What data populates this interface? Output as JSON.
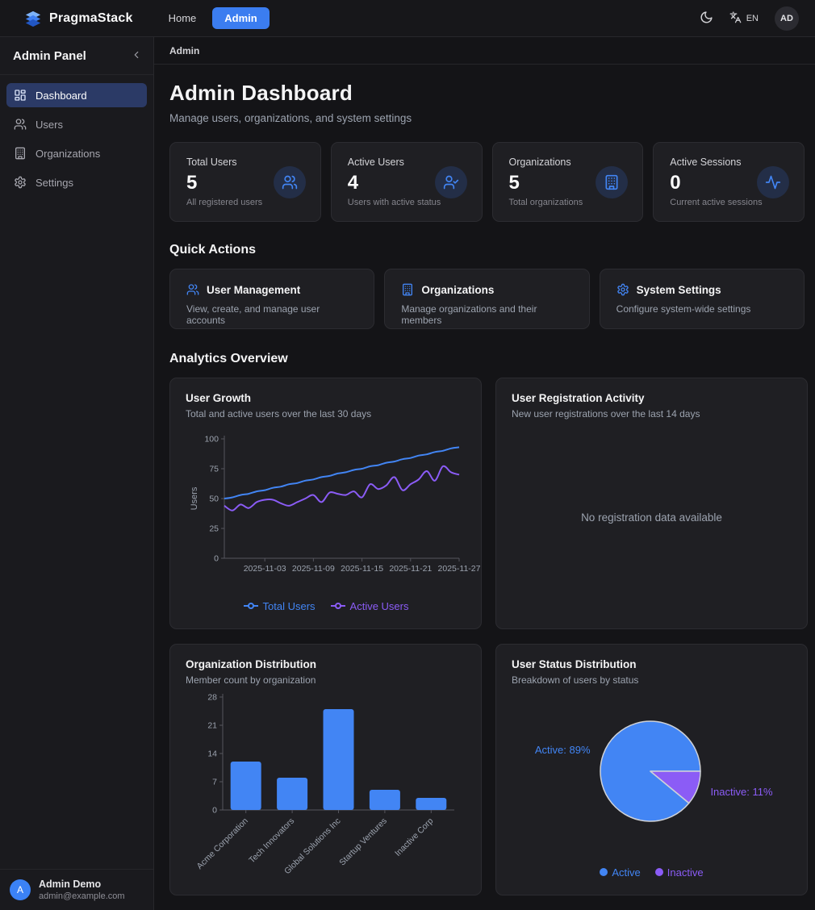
{
  "navbar": {
    "brand": "PragmaStack",
    "links": [
      {
        "label": "Home",
        "active": false
      },
      {
        "label": "Admin",
        "active": true
      }
    ],
    "language": "EN",
    "avatar_initials": "AD"
  },
  "sidebar": {
    "title": "Admin Panel",
    "items": [
      {
        "label": "Dashboard",
        "icon": "layout-dashboard",
        "active": true
      },
      {
        "label": "Users",
        "icon": "users",
        "active": false
      },
      {
        "label": "Organizations",
        "icon": "building",
        "active": false
      },
      {
        "label": "Settings",
        "icon": "settings",
        "active": false
      }
    ],
    "user": {
      "name": "Admin Demo",
      "email": "admin@example.com",
      "avatar_initial": "A"
    }
  },
  "breadcrumb": "Admin",
  "page": {
    "title": "Admin Dashboard",
    "subtitle": "Manage users, organizations, and system settings"
  },
  "stats": [
    {
      "label": "Total Users",
      "value": "5",
      "description": "All registered users",
      "icon": "users"
    },
    {
      "label": "Active Users",
      "value": "4",
      "description": "Users with active status",
      "icon": "user-check"
    },
    {
      "label": "Organizations",
      "value": "5",
      "description": "Total organizations",
      "icon": "building"
    },
    {
      "label": "Active Sessions",
      "value": "0",
      "description": "Current active sessions",
      "icon": "activity"
    }
  ],
  "quick_actions_heading": "Quick Actions",
  "quick_actions": [
    {
      "title": "User Management",
      "description": "View, create, and manage user accounts",
      "icon": "users"
    },
    {
      "title": "Organizations",
      "description": "Manage organizations and their members",
      "icon": "building"
    },
    {
      "title": "System Settings",
      "description": "Configure system-wide settings",
      "icon": "settings"
    }
  ],
  "analytics_heading": "Analytics Overview",
  "colors": {
    "accent_blue": "#4285f4",
    "purple": "#8b5cf6",
    "axis": "#55555e",
    "tick_text": "#9ca3af",
    "pie_stroke": "#cfd2d8"
  },
  "chart_data": [
    {
      "panel": "user-growth",
      "type": "line",
      "title": "User Growth",
      "subtitle": "Total and active users over the last 30 days",
      "ylabel": "Users",
      "ylim": [
        0,
        100
      ],
      "yticks": [
        0,
        25,
        50,
        75,
        100
      ],
      "x": [
        "2025-10-29",
        "2025-10-30",
        "2025-10-31",
        "2025-11-01",
        "2025-11-02",
        "2025-11-03",
        "2025-11-04",
        "2025-11-05",
        "2025-11-06",
        "2025-11-07",
        "2025-11-08",
        "2025-11-09",
        "2025-11-10",
        "2025-11-11",
        "2025-11-12",
        "2025-11-13",
        "2025-11-14",
        "2025-11-15",
        "2025-11-16",
        "2025-11-17",
        "2025-11-18",
        "2025-11-19",
        "2025-11-20",
        "2025-11-21",
        "2025-11-22",
        "2025-11-23",
        "2025-11-24",
        "2025-11-25",
        "2025-11-26",
        "2025-11-27"
      ],
      "xticks": [
        "2025-11-03",
        "2025-11-09",
        "2025-11-15",
        "2025-11-21",
        "2025-11-27"
      ],
      "grid": false,
      "legend_position": "bottom",
      "series": [
        {
          "name": "Total Users",
          "color": "#4285f4",
          "values": [
            50,
            51,
            53,
            54,
            56,
            57,
            59,
            60,
            62,
            63,
            65,
            66,
            68,
            69,
            71,
            72,
            74,
            75,
            77,
            78,
            80,
            81,
            83,
            84,
            86,
            87,
            89,
            90,
            92,
            93
          ]
        },
        {
          "name": "Active Users",
          "color": "#8b5cf6",
          "values": [
            44,
            40,
            45,
            42,
            47,
            49,
            49,
            46,
            44,
            47,
            50,
            53,
            47,
            55,
            54,
            53,
            56,
            51,
            62,
            58,
            61,
            68,
            57,
            62,
            66,
            73,
            65,
            77,
            72,
            70
          ]
        }
      ]
    },
    {
      "panel": "registration-activity",
      "type": "line",
      "title": "User Registration Activity",
      "subtitle": "New user registrations over the last 14 days",
      "empty_message": "No registration data available",
      "series": []
    },
    {
      "panel": "org-distribution",
      "type": "bar",
      "title": "Organization Distribution",
      "subtitle": "Member count by organization",
      "categories": [
        "Acme Corporation",
        "Tech Innovators",
        "Global Solutions Inc",
        "Startup Ventures",
        "Inactive Corp"
      ],
      "values": [
        12,
        8,
        25,
        5,
        3
      ],
      "ylim": [
        0,
        28
      ],
      "yticks": [
        0,
        7,
        14,
        21,
        28
      ],
      "bar_color": "#4285f4",
      "grid": false
    },
    {
      "panel": "user-status",
      "type": "pie",
      "title": "User Status Distribution",
      "subtitle": "Breakdown of users by status",
      "slices": [
        {
          "name": "Active",
          "pct": 89,
          "color": "#4285f4",
          "label": "Active: 89%"
        },
        {
          "name": "Inactive",
          "pct": 11,
          "color": "#8b5cf6",
          "label": "Inactive: 11%"
        }
      ],
      "legend_position": "bottom"
    }
  ]
}
